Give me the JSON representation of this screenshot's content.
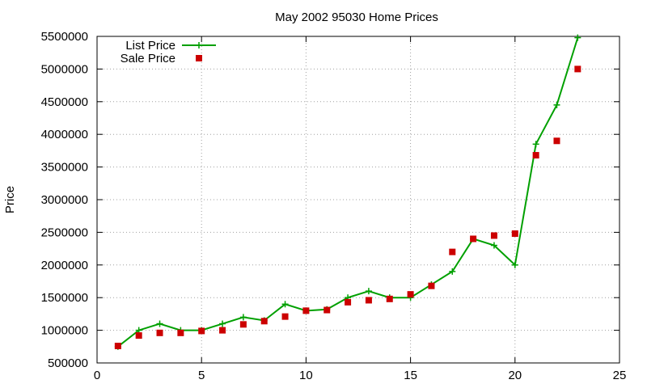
{
  "chart_data": {
    "type": "line",
    "title": "May 2002 95030 Home Prices",
    "xlabel": "",
    "ylabel": "Price",
    "xlim": [
      0,
      25
    ],
    "ylim": [
      500000,
      5500000
    ],
    "xticks": [
      0,
      5,
      10,
      15,
      20,
      25
    ],
    "yticks": [
      500000,
      1000000,
      1500000,
      2000000,
      2500000,
      3000000,
      3500000,
      4000000,
      4500000,
      5000000,
      5500000
    ],
    "grid": true,
    "legend_position": "top-left",
    "series": [
      {
        "name": "List Price",
        "kind": "line-with-plus-markers",
        "color": "#00a000",
        "x": [
          1,
          2,
          3,
          4,
          5,
          6,
          7,
          8,
          9,
          10,
          11,
          12,
          13,
          14,
          15,
          16,
          17,
          18,
          19,
          20,
          21,
          22,
          23
        ],
        "y": [
          750000,
          1000000,
          1100000,
          1000000,
          1000000,
          1100000,
          1200000,
          1150000,
          1400000,
          1300000,
          1320000,
          1500000,
          1600000,
          1500000,
          1500000,
          1700000,
          1900000,
          2400000,
          2300000,
          2000000,
          3850000,
          4450000,
          5480000
        ]
      },
      {
        "name": "Sale Price",
        "kind": "square-markers",
        "color": "#cc0000",
        "x": [
          1,
          2,
          3,
          4,
          5,
          6,
          7,
          8,
          9,
          10,
          11,
          12,
          13,
          14,
          15,
          16,
          17,
          18,
          19,
          20,
          21,
          22,
          23
        ],
        "y": [
          760000,
          920000,
          960000,
          960000,
          990000,
          1000000,
          1090000,
          1140000,
          1210000,
          1300000,
          1310000,
          1430000,
          1460000,
          1480000,
          1550000,
          1680000,
          2200000,
          2400000,
          2450000,
          2480000,
          3680000,
          3900000,
          5000000
        ]
      }
    ]
  }
}
